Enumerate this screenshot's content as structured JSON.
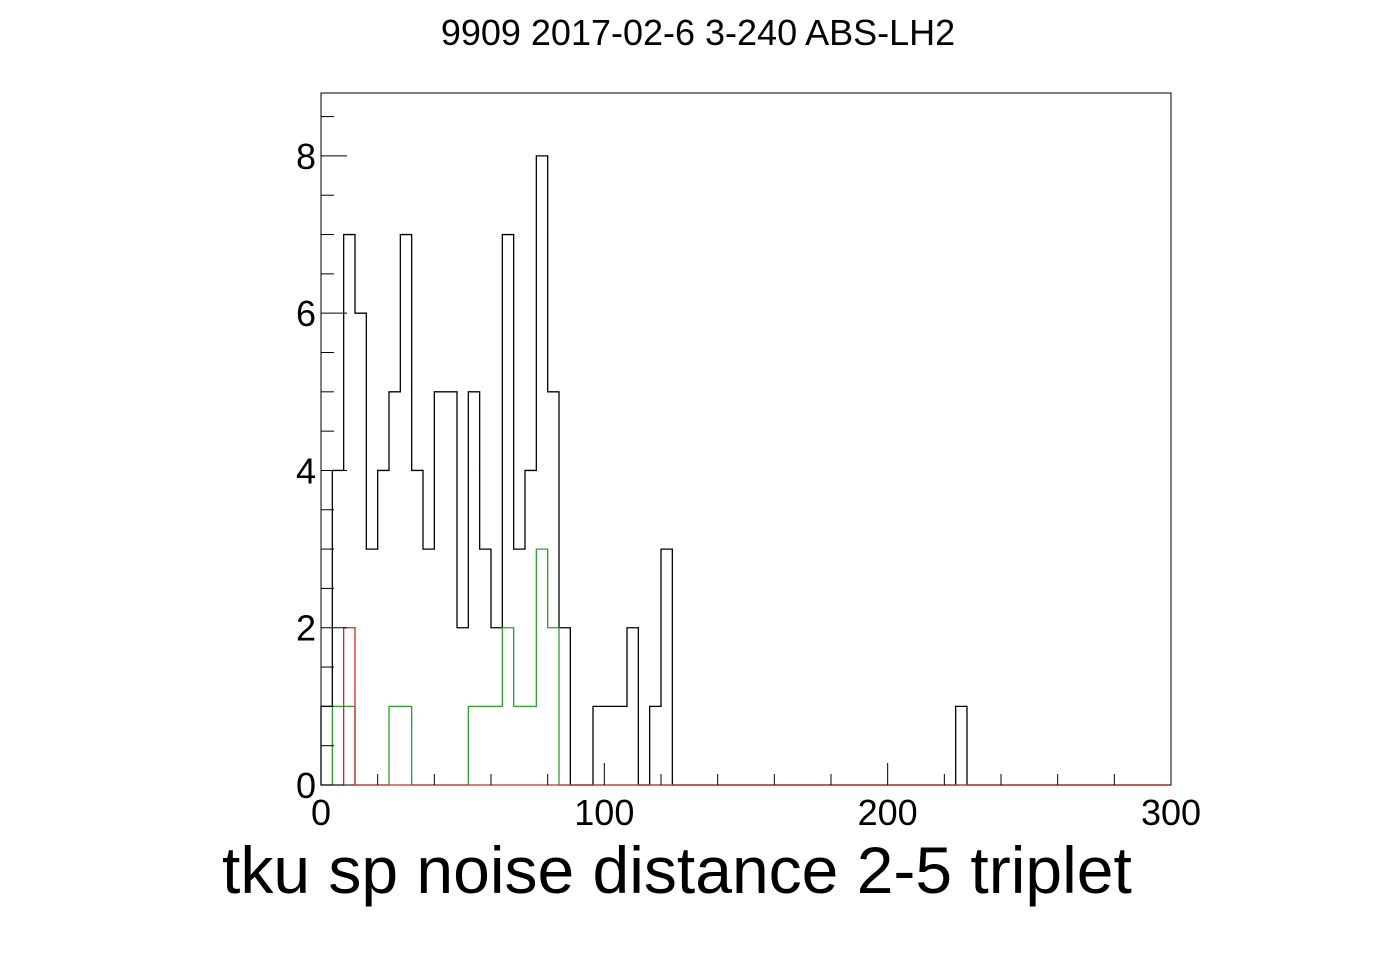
{
  "chart_data": {
    "type": "histogram",
    "title": "9909 2017-02-6 3-240 ABS-LH2",
    "xlabel": "tku sp noise distance 2-5 triplet",
    "ylabel": "",
    "xlim": [
      0,
      300
    ],
    "ylim": [
      0,
      8.8
    ],
    "bin_width": 4,
    "x_ticks": [
      0,
      100,
      200,
      300
    ],
    "y_ticks": [
      0,
      2,
      4,
      6,
      8
    ],
    "series": [
      {
        "color": "#000000",
        "values": [
          1,
          4,
          7,
          6,
          3,
          4,
          5,
          7,
          4,
          3,
          5,
          5,
          2,
          5,
          3,
          2,
          7,
          3,
          4,
          8,
          5,
          2,
          0,
          0,
          1,
          1,
          1,
          2,
          0,
          1,
          3,
          0,
          0,
          0,
          0,
          0,
          0,
          0,
          0,
          0,
          0,
          0,
          0,
          0,
          0,
          0,
          0,
          0,
          0,
          0,
          0,
          0,
          0,
          0,
          0,
          0,
          1,
          0,
          0,
          0,
          0,
          0,
          0,
          0,
          0,
          0,
          0,
          0,
          0,
          0,
          0,
          0,
          0,
          0,
          0
        ]
      },
      {
        "color": "#2ca02c",
        "values": [
          0,
          1,
          1,
          0,
          0,
          0,
          1,
          1,
          0,
          0,
          0,
          0,
          0,
          1,
          1,
          1,
          2,
          1,
          1,
          3,
          2,
          0,
          0,
          0,
          0,
          0,
          0,
          0,
          0,
          0,
          0,
          0,
          0,
          0,
          0,
          0,
          0,
          0,
          0,
          0,
          0,
          0,
          0,
          0,
          0,
          0,
          0,
          0,
          0,
          0,
          0,
          0,
          0,
          0,
          0,
          0,
          0,
          0,
          0,
          0,
          0,
          0,
          0,
          0,
          0,
          0,
          0,
          0,
          0,
          0,
          0,
          0,
          0,
          0,
          0
        ]
      },
      {
        "color": "#d62728",
        "values": [
          0,
          0,
          2,
          0,
          0,
          0,
          0,
          0,
          0,
          0,
          0,
          0,
          0,
          0,
          0,
          0,
          0,
          0,
          0,
          0,
          0,
          0,
          0,
          0,
          0,
          0,
          0,
          0,
          0,
          0,
          0,
          0,
          0,
          0,
          0,
          0,
          0,
          0,
          0,
          0,
          0,
          0,
          0,
          0,
          0,
          0,
          0,
          0,
          0,
          0,
          0,
          0,
          0,
          0,
          0,
          0,
          0,
          0,
          0,
          0,
          0,
          0,
          0,
          0,
          0,
          0,
          0,
          0,
          0,
          0,
          0,
          0,
          0,
          0,
          0
        ]
      }
    ]
  }
}
